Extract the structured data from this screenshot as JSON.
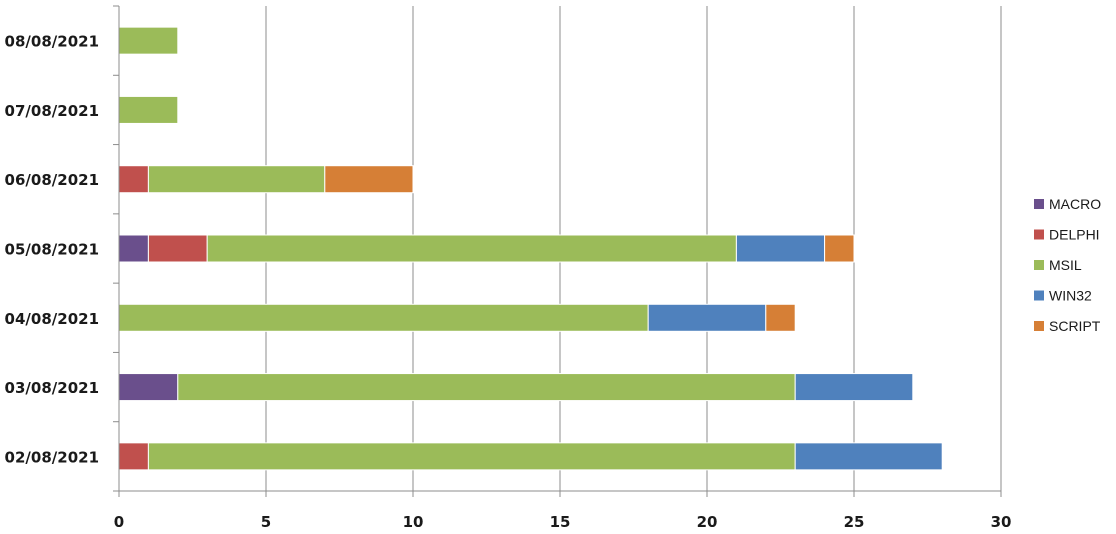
{
  "chart_data": {
    "type": "bar",
    "orientation": "horizontal",
    "stacked": true,
    "title": "",
    "xlabel": "",
    "ylabel": "",
    "xlim": [
      0,
      30
    ],
    "x_ticks": [
      0,
      5,
      10,
      15,
      20,
      25,
      30
    ],
    "grid": true,
    "legend_position": "right",
    "categories": [
      "02/08/2021",
      "03/08/2021",
      "04/08/2021",
      "05/08/2021",
      "06/08/2021",
      "07/08/2021",
      "08/08/2021"
    ],
    "series": [
      {
        "name": "MACRO",
        "color": "#6a4f8c",
        "values": [
          0,
          2,
          0,
          1,
          0,
          0,
          0
        ]
      },
      {
        "name": "DELPHI",
        "color": "#c0504d",
        "values": [
          1,
          0,
          0,
          2,
          1,
          0,
          0
        ]
      },
      {
        "name": "MSIL",
        "color": "#9bbb59",
        "values": [
          22,
          21,
          18,
          18,
          6,
          2,
          2
        ]
      },
      {
        "name": "WIN32",
        "color": "#4f81bd",
        "values": [
          5,
          4,
          4,
          3,
          0,
          0,
          0
        ]
      },
      {
        "name": "SCRIPT",
        "color": "#d67f36",
        "values": [
          0,
          0,
          1,
          1,
          3,
          0,
          0
        ]
      }
    ]
  }
}
